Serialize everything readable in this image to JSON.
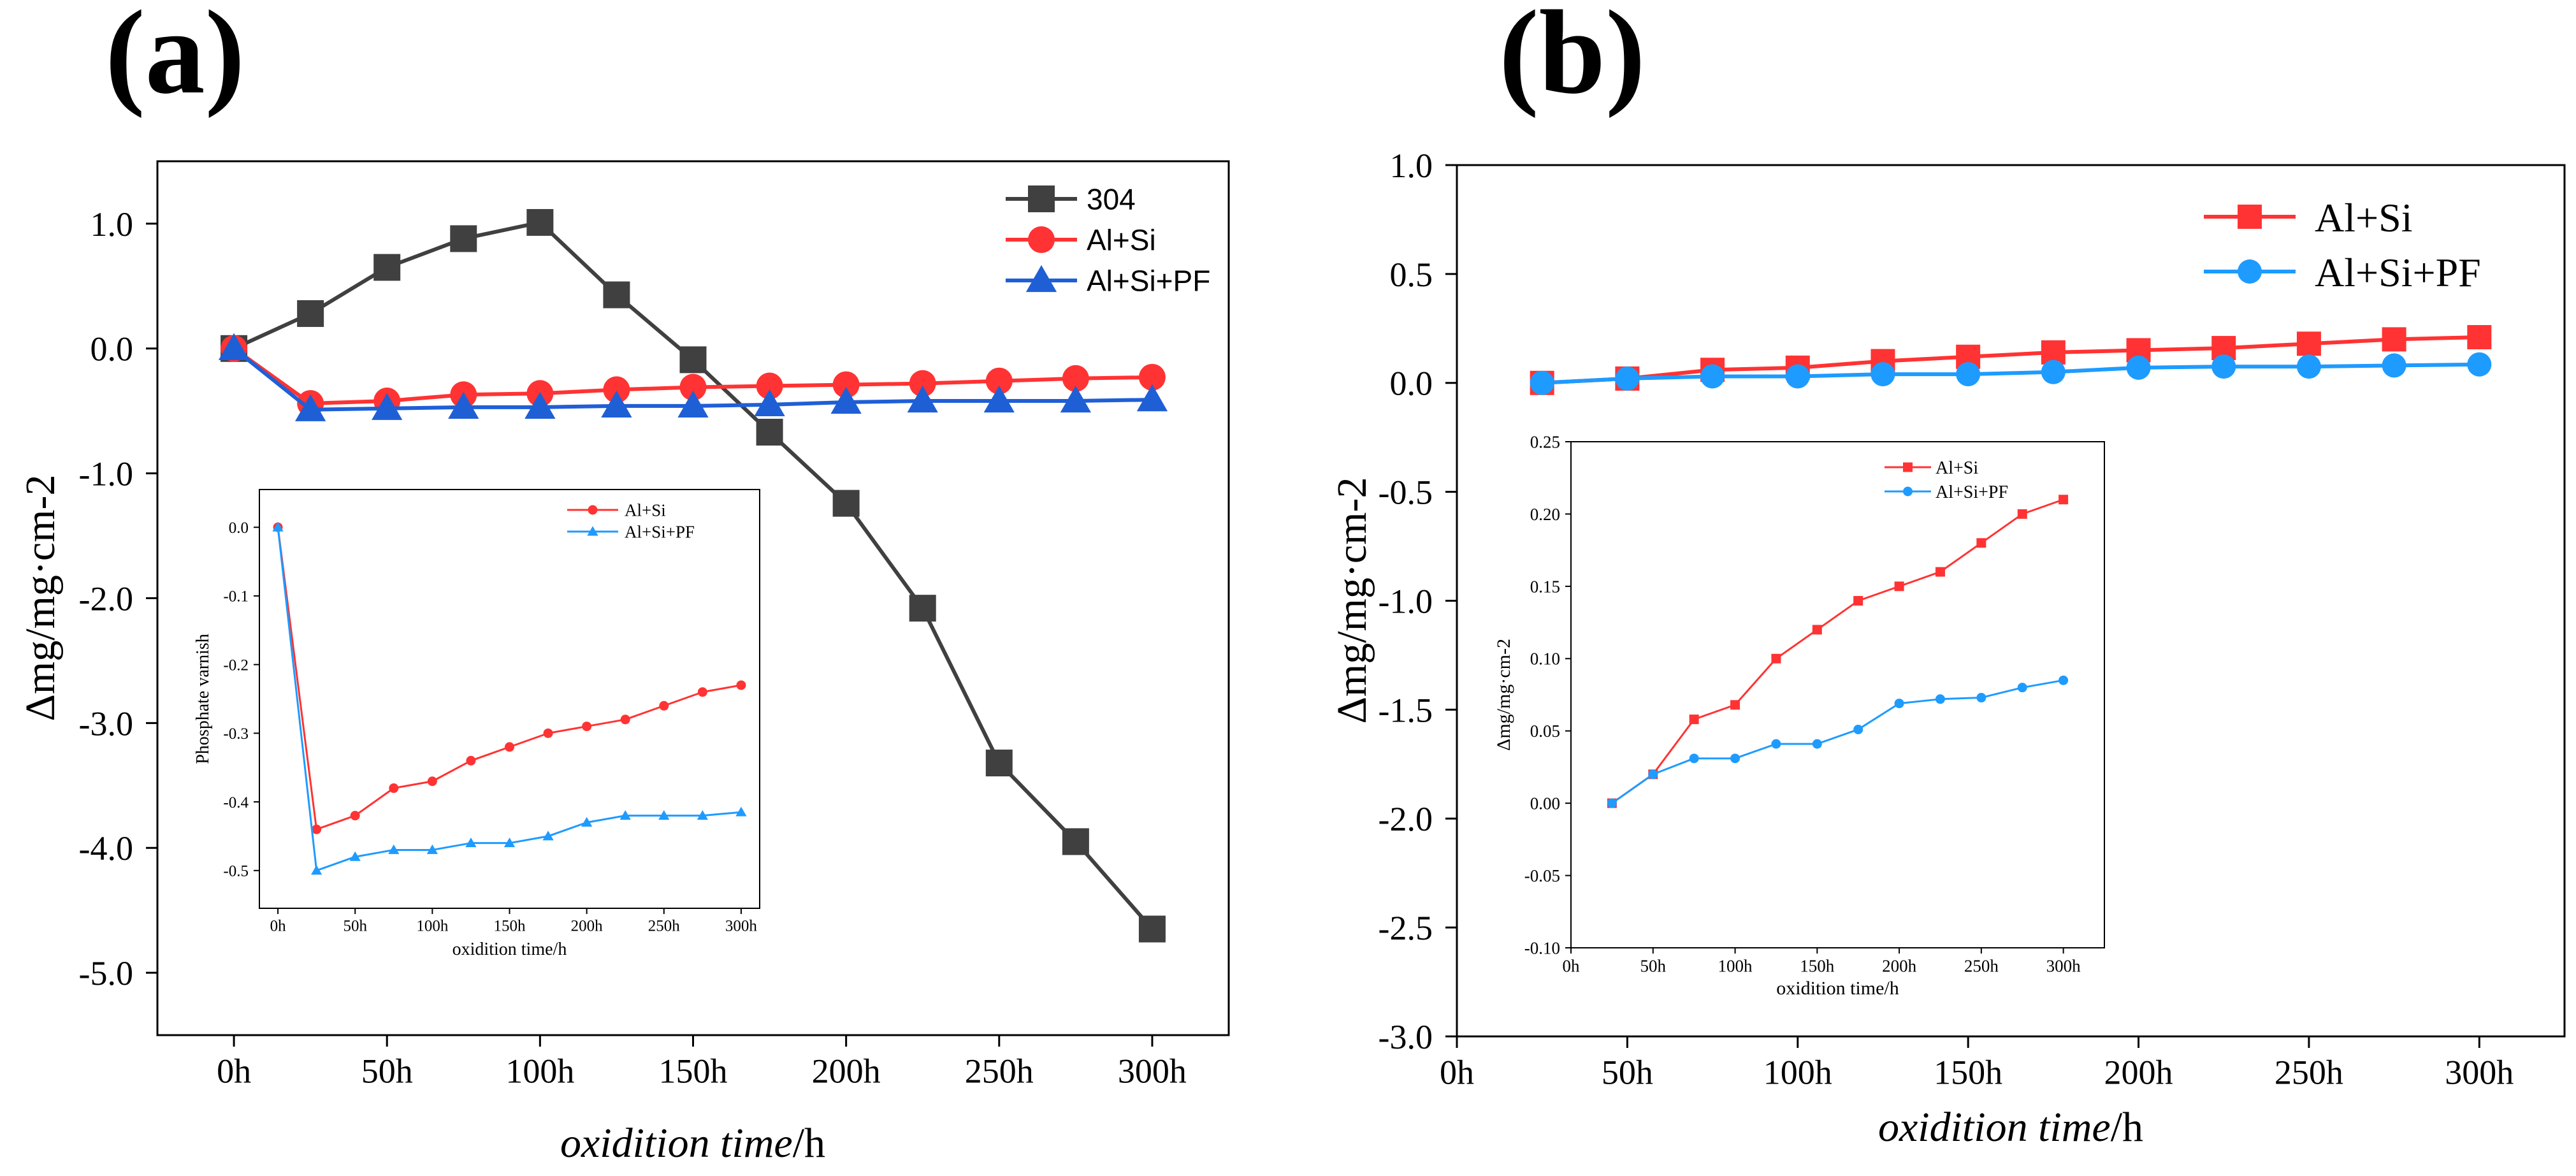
{
  "panels": [
    {
      "label": "(a)",
      "xlabel_italic": "oxidition time",
      "xlabel_unit": "/h",
      "ylabel": "Δmg/mg·cm-2",
      "chart_data": {
        "type": "line",
        "x": [
          0,
          25,
          50,
          75,
          100,
          125,
          150,
          175,
          200,
          225,
          250,
          275,
          300
        ],
        "xticks": [
          0,
          50,
          100,
          150,
          200,
          250,
          300
        ],
        "xtick_labels": [
          "0h",
          "50h",
          "100h",
          "150h",
          "200h",
          "250h",
          "300h"
        ],
        "xlim": [
          -25,
          325
        ],
        "yticks": [
          1.0,
          0.0,
          -1.0,
          -2.0,
          -3.0,
          -4.0,
          -5.0
        ],
        "ytick_labels": [
          "1.0",
          "0.0",
          "-1.0",
          "-2.0",
          "-3.0",
          "-4.0",
          "-5.0"
        ],
        "ylim": [
          -5.5,
          1.5
        ],
        "legend_position": "top-right",
        "series": [
          {
            "name": "304",
            "color": "#404040",
            "marker": "square",
            "values": [
              0.0,
              0.28,
              0.65,
              0.88,
              1.01,
              0.43,
              -0.09,
              -0.67,
              -1.24,
              -2.08,
              -3.32,
              -3.95,
              -4.65
            ]
          },
          {
            "name": "Al+Si",
            "color": "#ff3333",
            "marker": "circle",
            "values": [
              0.0,
              -0.44,
              -0.42,
              -0.37,
              -0.36,
              -0.33,
              -0.31,
              -0.3,
              -0.29,
              -0.28,
              -0.26,
              -0.24,
              -0.23
            ]
          },
          {
            "name": "Al+Si+PF",
            "color": "#1f5fd6",
            "marker": "triangle",
            "values": [
              0.0,
              -0.49,
              -0.48,
              -0.47,
              -0.47,
              -0.46,
              -0.46,
              -0.45,
              -0.43,
              -0.42,
              -0.42,
              -0.42,
              -0.41
            ]
          }
        ],
        "inset": {
          "type": "line",
          "xlabel": "oxidition time/h",
          "ylabel": "Phosphate varnish",
          "x": [
            0,
            25,
            50,
            75,
            100,
            125,
            150,
            175,
            200,
            225,
            250,
            275,
            300
          ],
          "xticks": [
            0,
            50,
            100,
            150,
            200,
            250,
            300
          ],
          "xtick_labels": [
            "0h",
            "50h",
            "100h",
            "150h",
            "200h",
            "250h",
            "300h"
          ],
          "xlim": [
            -12,
            312
          ],
          "yticks": [
            0.0,
            -0.1,
            -0.2,
            -0.3,
            -0.4,
            -0.5
          ],
          "ytick_labels": [
            "0.0",
            "-0.1",
            "-0.2",
            "-0.3",
            "-0.4",
            "-0.5"
          ],
          "ylim": [
            -0.555,
            0.055
          ],
          "legend_position": "top-right",
          "series": [
            {
              "name": "Al+Si",
              "color": "#ff3333",
              "marker": "circle",
              "values": [
                0.0,
                -0.44,
                -0.42,
                -0.38,
                -0.37,
                -0.34,
                -0.32,
                -0.3,
                -0.29,
                -0.28,
                -0.26,
                -0.24,
                -0.23
              ]
            },
            {
              "name": "Al+Si+PF",
              "color": "#1e9bff",
              "marker": "triangle",
              "values": [
                0.0,
                -0.5,
                -0.48,
                -0.47,
                -0.47,
                -0.46,
                -0.46,
                -0.45,
                -0.43,
                -0.42,
                -0.42,
                -0.42,
                -0.415
              ]
            }
          ]
        }
      }
    },
    {
      "label": "(b)",
      "xlabel_italic": "oxidition time",
      "xlabel_unit": "/h",
      "ylabel": "Δmg/mg·cm-2",
      "chart_data": {
        "type": "line",
        "x": [
          25,
          50,
          75,
          100,
          125,
          150,
          175,
          200,
          225,
          250,
          275,
          300
        ],
        "xticks": [
          0,
          50,
          100,
          150,
          200,
          250,
          300
        ],
        "xtick_labels": [
          "0h",
          "50h",
          "100h",
          "150h",
          "200h",
          "250h",
          "300h"
        ],
        "xlim": [
          0,
          325
        ],
        "yticks": [
          1.0,
          0.5,
          0.0,
          -0.5,
          -1.0,
          -1.5,
          -2.0,
          -2.5,
          -3.0
        ],
        "ytick_labels": [
          "1.0",
          "0.5",
          "0.0",
          "-0.5",
          "-1.0",
          "-1.5",
          "-2.0",
          "-2.5",
          "-3.0"
        ],
        "ylim": [
          -3.0,
          1.0
        ],
        "legend_position": "top-right",
        "series": [
          {
            "name": "Al+Si",
            "color": "#ff3333",
            "marker": "square",
            "values": [
              0.0,
              0.02,
              0.06,
              0.07,
              0.1,
              0.12,
              0.14,
              0.15,
              0.16,
              0.18,
              0.2,
              0.21
            ]
          },
          {
            "name": "Al+Si+PF",
            "color": "#1e9bff",
            "marker": "circle",
            "values": [
              0.0,
              0.02,
              0.03,
              0.03,
              0.04,
              0.04,
              0.05,
              0.07,
              0.075,
              0.075,
              0.08,
              0.085
            ]
          }
        ],
        "inset": {
          "type": "line",
          "xlabel": "oxidition time/h",
          "ylabel": "Δmg/mg·cm-2",
          "x": [
            25,
            50,
            75,
            100,
            125,
            150,
            175,
            200,
            225,
            250,
            275,
            300
          ],
          "xticks": [
            0,
            50,
            100,
            150,
            200,
            250,
            300
          ],
          "xtick_labels": [
            "0h",
            "50h",
            "100h",
            "150h",
            "200h",
            "250h",
            "300h"
          ],
          "xlim": [
            0,
            325
          ],
          "yticks": [
            0.25,
            0.2,
            0.15,
            0.1,
            0.05,
            0.0,
            -0.05,
            -0.1
          ],
          "ytick_labels": [
            "0.25",
            "0.20",
            "0.15",
            "0.10",
            "0.05",
            "0.00",
            "-0.05",
            "-0.10"
          ],
          "ylim": [
            -0.1,
            0.25
          ],
          "legend_position": "top-left",
          "series": [
            {
              "name": "Al+Si",
              "color": "#ff3333",
              "marker": "square",
              "values": [
                0.0,
                0.02,
                0.058,
                0.068,
                0.1,
                0.12,
                0.14,
                0.15,
                0.16,
                0.18,
                0.2,
                0.21
              ]
            },
            {
              "name": "Al+Si+PF",
              "color": "#1e9bff",
              "marker": "circle",
              "values": [
                0.0,
                0.02,
                0.031,
                0.031,
                0.041,
                0.041,
                0.051,
                0.069,
                0.072,
                0.073,
                0.08,
                0.085
              ]
            }
          ]
        }
      }
    }
  ]
}
